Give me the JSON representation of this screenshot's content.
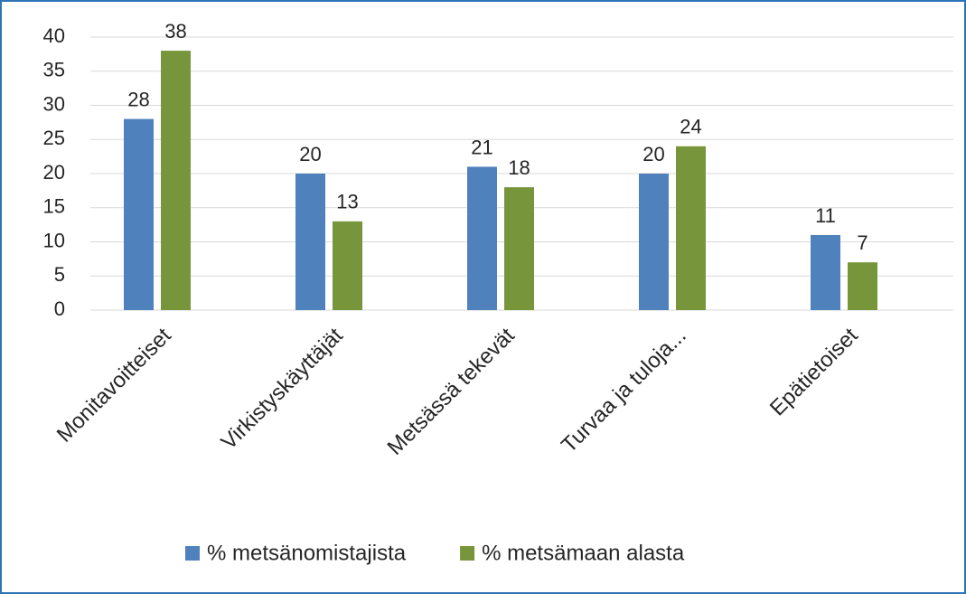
{
  "chart_data": {
    "type": "bar",
    "categories": [
      "Monitavoitteiset",
      "Virkistyskäyttäjät",
      "Metsässä tekevät",
      "Turvaa ja tuloja...",
      "Epätietoiset"
    ],
    "series": [
      {
        "name": "% metsänomistajista",
        "color": "#4f81bd",
        "values": [
          28,
          20,
          21,
          20,
          11
        ]
      },
      {
        "name": "% metsämaan alasta",
        "color": "#77963b",
        "values": [
          38,
          13,
          18,
          24,
          7
        ]
      }
    ],
    "ylim": [
      0,
      40
    ],
    "yticks": [
      0,
      5,
      10,
      15,
      20,
      25,
      30,
      35,
      40
    ],
    "grid": true,
    "legend": "bottom"
  }
}
